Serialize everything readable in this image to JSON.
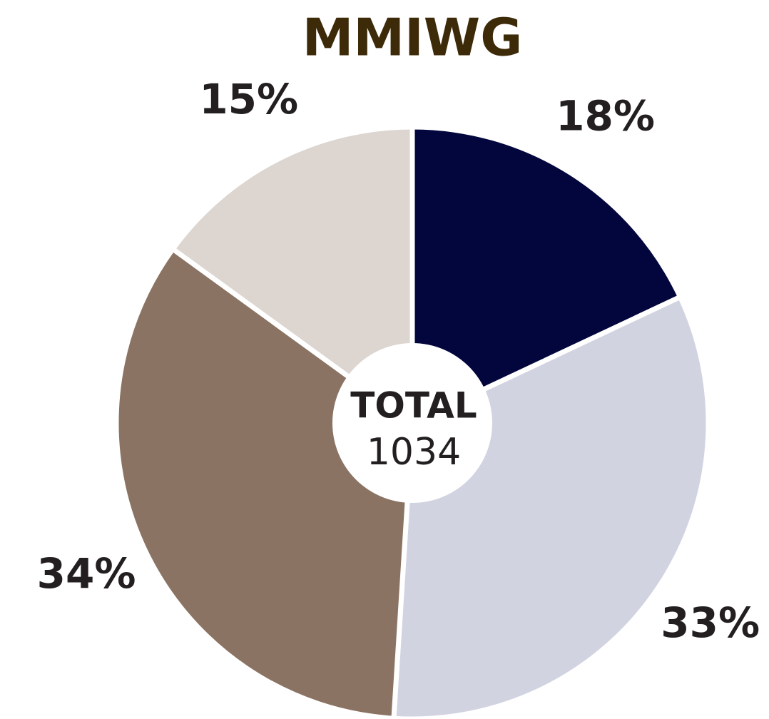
{
  "chart_data": {
    "type": "pie",
    "title": "MMIWG",
    "values": [
      18,
      33,
      34,
      15
    ],
    "value_labels": [
      "18%",
      "33%",
      "34%",
      "15%"
    ],
    "colors": [
      "#02063c",
      "#d1d3e1",
      "#8b7363",
      "#dcd5d0"
    ],
    "center_label": "TOTAL",
    "total": 1034
  }
}
